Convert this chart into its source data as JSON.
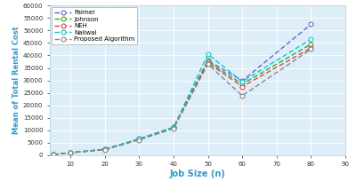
{
  "x": [
    5,
    10,
    20,
    30,
    40,
    50,
    60,
    80
  ],
  "series": {
    "Palmer": [
      200,
      900,
      2300,
      6500,
      11200,
      38000,
      29800,
      52500
    ],
    "Johnson": [
      200,
      900,
      2300,
      6300,
      11000,
      37500,
      28500,
      44500
    ],
    "NEH": [
      200,
      900,
      2300,
      6200,
      10800,
      37000,
      27500,
      43000
    ],
    "Nailwal": [
      200,
      900,
      2300,
      6500,
      11000,
      40500,
      29500,
      46500
    ],
    "Proposed Algorithm": [
      200,
      900,
      2100,
      6100,
      10600,
      36500,
      23800,
      42500
    ]
  },
  "colors": {
    "Palmer": "#6666cc",
    "Johnson": "#33aa33",
    "NEH": "#dd4444",
    "Nailwal": "#00cccc",
    "Proposed Algorithm": "#888888"
  },
  "xlabel": "Job Size (n)",
  "ylabel": "Mean of Total Rental Cost",
  "xlim": [
    4,
    90
  ],
  "ylim": [
    0,
    60000
  ],
  "xticks": [
    10,
    20,
    30,
    40,
    50,
    60,
    70,
    80,
    90
  ],
  "yticks": [
    0,
    5000,
    10000,
    15000,
    20000,
    25000,
    30000,
    35000,
    40000,
    45000,
    50000,
    55000,
    60000
  ],
  "background_color": "#ddeef8",
  "fig_bg": "#ffffff"
}
